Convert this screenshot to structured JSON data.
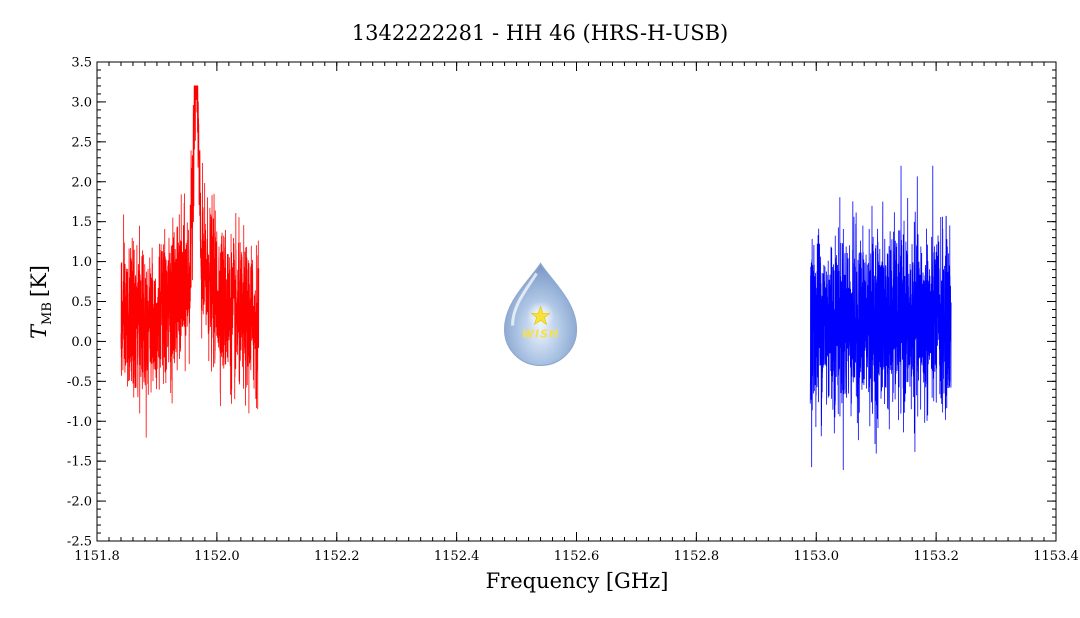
{
  "chart_data": {
    "type": "line",
    "title": "1342222281 - HH 46 (HRS-H-USB)",
    "xlabel": "Frequency [GHz]",
    "ylabel_main": "T",
    "ylabel_sub": "MB",
    "ylabel_unit": "[K]",
    "xlim": [
      1151.8,
      1153.4
    ],
    "ylim": [
      -2.5,
      3.5
    ],
    "xticks": [
      {
        "value": 1151.8,
        "label": "1151.8"
      },
      {
        "value": 1152.0,
        "label": "1152.0"
      },
      {
        "value": 1152.2,
        "label": "1152.2"
      },
      {
        "value": 1152.4,
        "label": "1152.4"
      },
      {
        "value": 1152.6,
        "label": "1152.6"
      },
      {
        "value": 1152.8,
        "label": "1152.8"
      },
      {
        "value": 1153.0,
        "label": "1153.0"
      },
      {
        "value": 1153.2,
        "label": "1153.2"
      },
      {
        "value": 1153.4,
        "label": "1153.4"
      }
    ],
    "yticks": [
      {
        "value": -2.5,
        "label": "-2.5"
      },
      {
        "value": -2.0,
        "label": "-2.0"
      },
      {
        "value": -1.5,
        "label": "-1.5"
      },
      {
        "value": -1.0,
        "label": "-1.0"
      },
      {
        "value": -0.5,
        "label": "-0.5"
      },
      {
        "value": 0.0,
        "label": "0.0"
      },
      {
        "value": 0.5,
        "label": "0.5"
      },
      {
        "value": 1.0,
        "label": "1.0"
      },
      {
        "value": 1.5,
        "label": "1.5"
      },
      {
        "value": 2.0,
        "label": "2.0"
      },
      {
        "value": 2.5,
        "label": "2.5"
      },
      {
        "value": 3.0,
        "label": "3.0"
      },
      {
        "value": 3.5,
        "label": "3.5"
      }
    ],
    "series": [
      {
        "color": "#ff0000",
        "x_range": [
          1151.84,
          1152.07
        ],
        "baseline": 0.25,
        "noise_rms": 0.45,
        "line_peak": {
          "center": 1151.965,
          "amplitude": 2.9,
          "width": 0.004
        },
        "broad_component": {
          "center": 1151.97,
          "amplitude": 0.6,
          "width": 0.03
        },
        "min_value": -1.7,
        "max_value": 3.2
      },
      {
        "color": "#0000ff",
        "x_range": [
          1152.99,
          1153.225
        ],
        "baseline": 0.25,
        "noise_rms": 0.55,
        "min_value": -2.05,
        "max_value": 2.2
      }
    ],
    "logo": {
      "text": "WISH",
      "x": 1152.54,
      "y": 0.25
    }
  }
}
